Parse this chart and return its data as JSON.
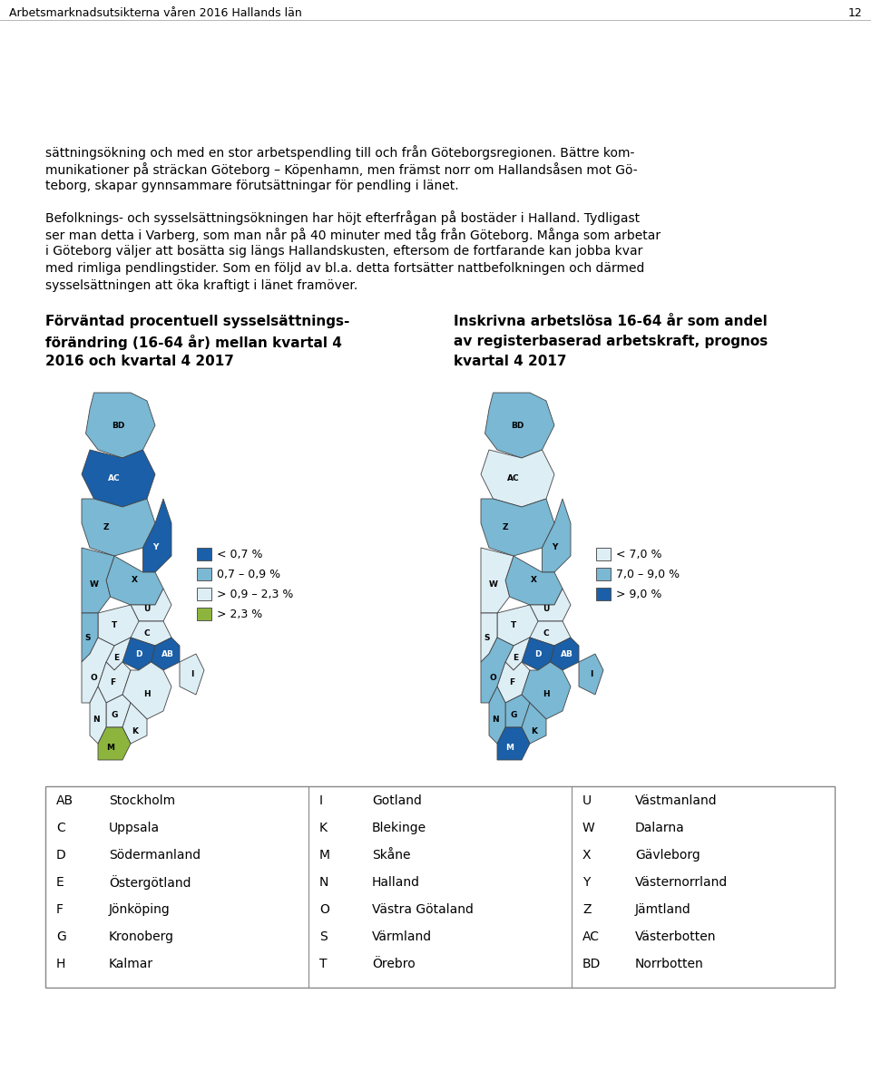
{
  "header_text": "Arbetsmarknadsutsikterna våren 2016 Hallands län",
  "page_number": "12",
  "para1_lines": [
    "sättningsökning och med en stor arbetspendling till och från Göteborgsregionen. Bättre kom-",
    "munikationer på sträckan Göteborg – Köpenhamn, men främst norr om Hallandsåsen mot Gö-",
    "teborg, skapar gynnsammare förutsättningar för pendling i länet."
  ],
  "para2_lines": [
    "Befolknings- och sysselsättningsökningen har höjt efterfrågan på bostäder i Halland. Tydligast",
    "ser man detta i Varberg, som man når på 40 minuter med tåg från Göteborg. Många som arbetar",
    "i Göteborg väljer att bosätta sig längs Hallandskusten, eftersom de fortfarande kan jobba kvar",
    "med rimliga pendlingstider. Som en följd av bl.a. detta fortsätter nattbefolkningen och därmed",
    "sysselsättningen att öka kraftigt i länet framöver."
  ],
  "map1_title_lines": [
    "Förväntad procentuell sysselsättnings-",
    "förändring (16-64 år) mellan kvartal 4",
    "2016 och kvartal 4 2017"
  ],
  "map2_title_lines": [
    "Inskrivna arbetslösa 16-64 år som andel",
    "av registerbaserad arbetskraft, prognos",
    "kvartal 4 2017"
  ],
  "legend1": [
    {
      "color": "#1a5fa8",
      "label": "< 0,7 %"
    },
    {
      "color": "#7ab8d4",
      "label": "0,7 – 0,9 %"
    },
    {
      "color": "#ddeef5",
      "label": "> 0,9 – 2,3 %"
    },
    {
      "color": "#8db53d",
      "label": "> 2,3 %"
    }
  ],
  "legend2": [
    {
      "color": "#ddeef5",
      "label": "< 7,0 %"
    },
    {
      "color": "#7ab8d4",
      "label": "7,0 – 9,0 %"
    },
    {
      "color": "#1a5fa8",
      "label": "> 9,0 %"
    }
  ],
  "table_rows": [
    [
      "AB",
      "Stockholm",
      "I",
      "Gotland",
      "U",
      "Västmanland"
    ],
    [
      "C",
      "Uppsala",
      "K",
      "Blekinge",
      "W",
      "Dalarna"
    ],
    [
      "D",
      "Södermanland",
      "M",
      "Skåne",
      "X",
      "Gävleborg"
    ],
    [
      "E",
      "Östergötland",
      "N",
      "Halland",
      "Y",
      "Västernorrland"
    ],
    [
      "F",
      "Jönköping",
      "O",
      "Västra Götaland",
      "Z",
      "Jämtland"
    ],
    [
      "G",
      "Kronoberg",
      "S",
      "Värmland",
      "AC",
      "Västerbotten"
    ],
    [
      "H",
      "Kalmar",
      "T",
      "Örebro",
      "BD",
      "Norrbotten"
    ]
  ],
  "bg_color": "#ffffff",
  "text_color": "#000000"
}
